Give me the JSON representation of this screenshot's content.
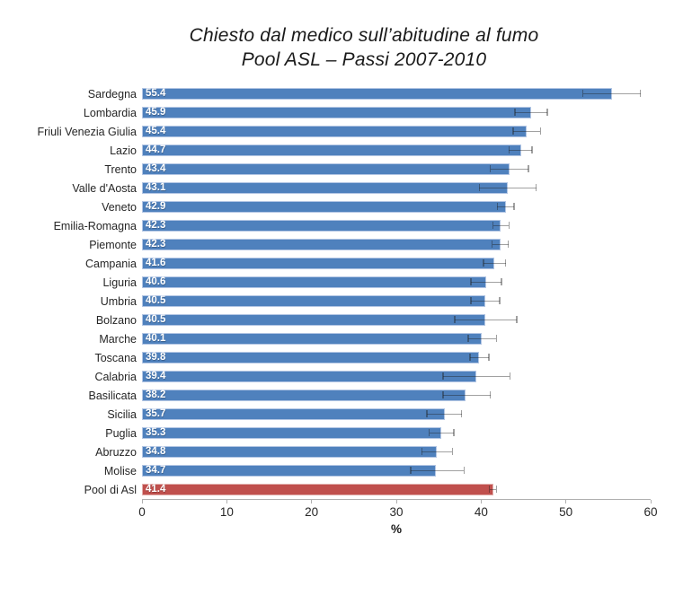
{
  "title": {
    "line1": "Chiesto dal medico sull’abitudine al fumo",
    "line2": "Pool ASL – Passi 2007-2010"
  },
  "chart_data": {
    "type": "bar",
    "orientation": "horizontal",
    "xlabel": "%",
    "xlim": [
      0,
      60
    ],
    "xticks": [
      "0",
      "10",
      "20",
      "30",
      "40",
      "50",
      "60"
    ],
    "grid": false,
    "bar_color": "#4F81BD",
    "bar_border_color": "#B3C6E4",
    "highlight_color": "#C0504D",
    "highlight_border_color": "#E2AFAD",
    "error_bar_color": "rgba(30,30,30,0.42)",
    "bars": [
      {
        "label": "Sardegna",
        "value": 55.4,
        "display": "55.4",
        "ci_low": 52.0,
        "ci_high": 58.8,
        "highlight": false
      },
      {
        "label": "Lombardia",
        "value": 45.9,
        "display": "45.9",
        "ci_low": 44.0,
        "ci_high": 47.8,
        "highlight": false
      },
      {
        "label": "Friuli Venezia Giulia",
        "value": 45.4,
        "display": "45.4",
        "ci_low": 43.8,
        "ci_high": 47.0,
        "highlight": false
      },
      {
        "label": "Lazio",
        "value": 44.7,
        "display": "44.7",
        "ci_low": 43.3,
        "ci_high": 46.0,
        "highlight": false
      },
      {
        "label": "Trento",
        "value": 43.4,
        "display": "43.4",
        "ci_low": 41.1,
        "ci_high": 45.6,
        "highlight": false
      },
      {
        "label": "Valle d'Aosta",
        "value": 43.1,
        "display": "43.1",
        "ci_low": 39.8,
        "ci_high": 46.5,
        "highlight": false
      },
      {
        "label": "Veneto",
        "value": 42.9,
        "display": "42.9",
        "ci_low": 41.9,
        "ci_high": 43.9,
        "highlight": false
      },
      {
        "label": "Emilia-Romagna",
        "value": 42.3,
        "display": "42.3",
        "ci_low": 41.4,
        "ci_high": 43.3,
        "highlight": false
      },
      {
        "label": "Piemonte",
        "value": 42.3,
        "display": "42.3",
        "ci_low": 41.3,
        "ci_high": 43.2,
        "highlight": false
      },
      {
        "label": "Campania",
        "value": 41.6,
        "display": "41.6",
        "ci_low": 40.3,
        "ci_high": 42.9,
        "highlight": false
      },
      {
        "label": "Liguria",
        "value": 40.6,
        "display": "40.6",
        "ci_low": 38.8,
        "ci_high": 42.4,
        "highlight": false
      },
      {
        "label": "Umbria",
        "value": 40.5,
        "display": "40.5",
        "ci_low": 38.8,
        "ci_high": 42.2,
        "highlight": false
      },
      {
        "label": "Bolzano",
        "value": 40.5,
        "display": "40.5",
        "ci_low": 36.9,
        "ci_high": 44.2,
        "highlight": false
      },
      {
        "label": "Marche",
        "value": 40.1,
        "display": "40.1",
        "ci_low": 38.5,
        "ci_high": 41.8,
        "highlight": false
      },
      {
        "label": "Toscana",
        "value": 39.8,
        "display": "39.8",
        "ci_low": 38.7,
        "ci_high": 40.9,
        "highlight": false
      },
      {
        "label": "Calabria",
        "value": 39.4,
        "display": "39.4",
        "ci_low": 35.5,
        "ci_high": 43.4,
        "highlight": false
      },
      {
        "label": "Basilicata",
        "value": 38.2,
        "display": "38.2",
        "ci_low": 35.5,
        "ci_high": 41.1,
        "highlight": false
      },
      {
        "label": "Sicilia",
        "value": 35.7,
        "display": "35.7",
        "ci_low": 33.6,
        "ci_high": 37.7,
        "highlight": false
      },
      {
        "label": "Puglia",
        "value": 35.3,
        "display": "35.3",
        "ci_low": 33.9,
        "ci_high": 36.8,
        "highlight": false
      },
      {
        "label": "Abruzzo",
        "value": 34.8,
        "display": "34.8",
        "ci_low": 33.0,
        "ci_high": 36.6,
        "highlight": false
      },
      {
        "label": "Molise",
        "value": 34.7,
        "display": "34.7",
        "ci_low": 31.7,
        "ci_high": 38.0,
        "highlight": false
      },
      {
        "label": "Pool di Asl",
        "value": 41.4,
        "display": "41.4",
        "ci_low": 41.0,
        "ci_high": 41.8,
        "highlight": true
      }
    ]
  }
}
